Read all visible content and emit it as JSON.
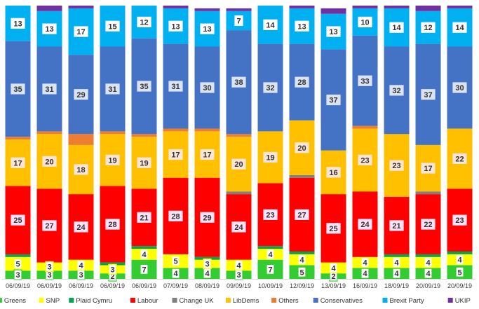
{
  "chart_data": {
    "type": "bar",
    "stacked": true,
    "title": "",
    "xlabel": "",
    "ylabel": "",
    "ylim": [
      0,
      100
    ],
    "grid": false,
    "legend_position": "bottom",
    "categories": [
      "06/09/19",
      "06/09/19",
      "06/09/19",
      "06/09/19",
      "06/09/19",
      "07/09/19",
      "08/09/19",
      "09/09/19",
      "10/09/19",
      "12/09/19",
      "13/09/19",
      "16/09/19",
      "18/09/19",
      "20/09/19",
      "20/09/19"
    ],
    "series": [
      {
        "name": "Greens",
        "color": "#33cc33",
        "labeled": true,
        "label_style": "green",
        "values": [
          3,
          3,
          3,
          2,
          7,
          4,
          4,
          3,
          7,
          5,
          2,
          4,
          4,
          4,
          5
        ]
      },
      {
        "name": "SNP",
        "color": "#ffff00",
        "labeled": true,
        "label_style": "yellow",
        "values": [
          5,
          3,
          4,
          3,
          4,
          5,
          3,
          4,
          4,
          4,
          4,
          4,
          4,
          4,
          4
        ]
      },
      {
        "name": "Plaid Cymru",
        "color": "#00a651",
        "labeled": false,
        "values": [
          1,
          0,
          0,
          1,
          1,
          0,
          1,
          0,
          1,
          1,
          0,
          0,
          1,
          1,
          1
        ]
      },
      {
        "name": "Labour",
        "color": "#ff0000",
        "labeled": true,
        "label_style": "pink",
        "values": [
          25,
          27,
          24,
          28,
          21,
          28,
          29,
          24,
          23,
          27,
          25,
          24,
          21,
          22,
          23
        ]
      },
      {
        "name": "Change UK",
        "color": "#808080",
        "labeled": false,
        "values": [
          0,
          0,
          0,
          0,
          0,
          0,
          0,
          1,
          0,
          1,
          0,
          0,
          0,
          1,
          0
        ]
      },
      {
        "name": "LibDems",
        "color": "#ffc000",
        "labeled": true,
        "label_style": "peach",
        "values": [
          17,
          20,
          18,
          19,
          19,
          17,
          17,
          20,
          19,
          20,
          16,
          23,
          23,
          17,
          22
        ]
      },
      {
        "name": "Others",
        "color": "#ed7d31",
        "labeled": false,
        "values": [
          1,
          1,
          4,
          1,
          1,
          1,
          1,
          1,
          0,
          0,
          0,
          1,
          0,
          0,
          0
        ]
      },
      {
        "name": "Conservatives",
        "color": "#4472c4",
        "labeled": true,
        "label_style": "blue",
        "values": [
          35,
          31,
          29,
          31,
          35,
          31,
          30,
          38,
          32,
          28,
          37,
          33,
          32,
          37,
          30
        ]
      },
      {
        "name": "Brexit Party",
        "color": "#00b0f0",
        "labeled": true,
        "label_style": "white",
        "values": [
          13,
          13,
          17,
          15,
          12,
          13,
          13,
          7,
          14,
          13,
          13,
          10,
          14,
          12,
          14
        ]
      },
      {
        "name": "UKIP",
        "color": "#7030a0",
        "labeled": false,
        "values": [
          0,
          2,
          1,
          0,
          0,
          1,
          1,
          1,
          0,
          1,
          2,
          1,
          1,
          2,
          1
        ]
      }
    ]
  }
}
